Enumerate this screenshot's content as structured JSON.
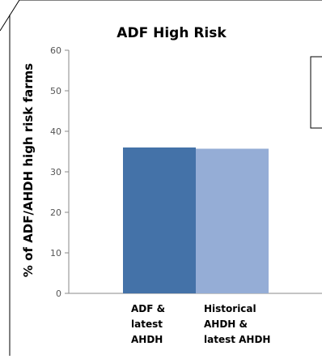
{
  "chart_data": {
    "type": "bar",
    "title": "ADF High Risk",
    "xlabel": "",
    "ylabel": "% of ADF/AHDH high risk farms",
    "ylim": [
      0,
      60
    ],
    "yticks": [
      0,
      10,
      20,
      30,
      40,
      50,
      60
    ],
    "grid": false,
    "categories": [
      [
        "ADF &",
        "latest",
        "AHDH"
      ],
      [
        "Historical",
        "AHDH &",
        "latest AHDH"
      ]
    ],
    "values": [
      36,
      35.7
    ],
    "colors": [
      "#4472A8",
      "#95ADD6"
    ]
  }
}
